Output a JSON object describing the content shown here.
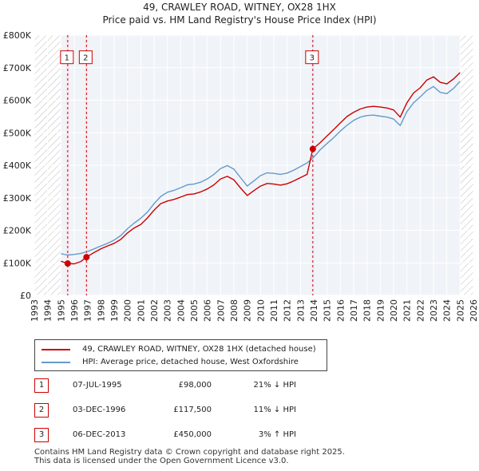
{
  "chart_data": {
    "type": "line",
    "title": "49, CRAWLEY ROAD, WITNEY, OX28 1HX",
    "subtitle": "Price paid vs. HM Land Registry's House Price Index (HPI)",
    "xlim": [
      1993,
      2026
    ],
    "ylim": [
      0,
      800000
    ],
    "x_ticks": [
      1993,
      1994,
      1995,
      1996,
      1997,
      1998,
      1999,
      2000,
      2001,
      2002,
      2003,
      2004,
      2005,
      2006,
      2007,
      2008,
      2009,
      2010,
      2011,
      2012,
      2013,
      2014,
      2015,
      2016,
      2017,
      2018,
      2019,
      2020,
      2021,
      2022,
      2023,
      2024,
      2025,
      2026
    ],
    "x_tick_labels": [
      "1993",
      "1994",
      "1995",
      "1996",
      "1997",
      "1998",
      "1999",
      "2000",
      "2001",
      "2002",
      "2003",
      "2004",
      "2005",
      "2006",
      "2007",
      "2008",
      "2009",
      "2010",
      "2011",
      "2012",
      "2013",
      "2014",
      "2015",
      "2016",
      "2017",
      "2018",
      "2019",
      "2020",
      "2021",
      "2022",
      "2023",
      "2024",
      "2025",
      "2026"
    ],
    "y_ticks": [
      0,
      100000,
      200000,
      300000,
      400000,
      500000,
      600000,
      700000,
      800000
    ],
    "y_tick_labels": [
      "£0",
      "£100K",
      "£200K",
      "£300K",
      "£400K",
      "£500K",
      "£600K",
      "£700K",
      "£800K"
    ],
    "grid": true,
    "hatched_ranges": [
      [
        1993,
        1995.0
      ],
      [
        2025.0,
        2026
      ]
    ],
    "series": [
      {
        "name": "49, CRAWLEY ROAD, WITNEY, OX28 1HX (detached house)",
        "color": "#cc0000",
        "points": [
          [
            1995.0,
            105000
          ],
          [
            1995.51,
            98000
          ],
          [
            1996.0,
            97000
          ],
          [
            1996.5,
            104000
          ],
          [
            1996.92,
            117500
          ],
          [
            1997.5,
            132000
          ],
          [
            1998.0,
            143000
          ],
          [
            1998.5,
            152000
          ],
          [
            1999.0,
            160000
          ],
          [
            1999.5,
            172000
          ],
          [
            2000.0,
            192000
          ],
          [
            2000.5,
            207000
          ],
          [
            2001.0,
            218000
          ],
          [
            2001.5,
            238000
          ],
          [
            2002.0,
            262000
          ],
          [
            2002.5,
            282000
          ],
          [
            2003.0,
            290000
          ],
          [
            2003.5,
            295000
          ],
          [
            2004.0,
            302000
          ],
          [
            2004.5,
            310000
          ],
          [
            2005.0,
            312000
          ],
          [
            2005.5,
            318000
          ],
          [
            2006.0,
            327000
          ],
          [
            2006.5,
            340000
          ],
          [
            2007.0,
            358000
          ],
          [
            2007.5,
            366000
          ],
          [
            2008.0,
            355000
          ],
          [
            2008.5,
            330000
          ],
          [
            2009.0,
            307000
          ],
          [
            2009.5,
            322000
          ],
          [
            2010.0,
            336000
          ],
          [
            2010.5,
            344000
          ],
          [
            2011.0,
            342000
          ],
          [
            2011.5,
            339000
          ],
          [
            2012.0,
            343000
          ],
          [
            2012.5,
            352000
          ],
          [
            2013.0,
            362000
          ],
          [
            2013.5,
            372000
          ],
          [
            2013.93,
            450000
          ],
          [
            2014.5,
            470000
          ],
          [
            2015.0,
            490000
          ],
          [
            2015.5,
            510000
          ],
          [
            2016.0,
            530000
          ],
          [
            2016.5,
            550000
          ],
          [
            2017.0,
            563000
          ],
          [
            2017.5,
            573000
          ],
          [
            2018.0,
            579000
          ],
          [
            2018.5,
            581000
          ],
          [
            2019.0,
            579000
          ],
          [
            2019.5,
            576000
          ],
          [
            2020.0,
            570000
          ],
          [
            2020.5,
            548000
          ],
          [
            2021.0,
            592000
          ],
          [
            2021.5,
            622000
          ],
          [
            2022.0,
            638000
          ],
          [
            2022.5,
            662000
          ],
          [
            2023.0,
            672000
          ],
          [
            2023.5,
            655000
          ],
          [
            2024.0,
            650000
          ],
          [
            2024.5,
            665000
          ],
          [
            2025.0,
            685000
          ]
        ]
      },
      {
        "name": "HPI: Average price, detached house, West Oxfordshire",
        "color": "#6699cc",
        "points": [
          [
            1995.0,
            128000
          ],
          [
            1995.5,
            124000
          ],
          [
            1996.0,
            126000
          ],
          [
            1996.5,
            129000
          ],
          [
            1997.0,
            135000
          ],
          [
            1997.5,
            143000
          ],
          [
            1998.0,
            152000
          ],
          [
            1998.5,
            160000
          ],
          [
            1999.0,
            170000
          ],
          [
            1999.5,
            184000
          ],
          [
            2000.0,
            205000
          ],
          [
            2000.5,
            222000
          ],
          [
            2001.0,
            237000
          ],
          [
            2001.5,
            256000
          ],
          [
            2002.0,
            282000
          ],
          [
            2002.5,
            304000
          ],
          [
            2003.0,
            317000
          ],
          [
            2003.5,
            323000
          ],
          [
            2004.0,
            331000
          ],
          [
            2004.5,
            340000
          ],
          [
            2005.0,
            342000
          ],
          [
            2005.5,
            348000
          ],
          [
            2006.0,
            358000
          ],
          [
            2006.5,
            372000
          ],
          [
            2007.0,
            390000
          ],
          [
            2007.5,
            399000
          ],
          [
            2008.0,
            388000
          ],
          [
            2008.5,
            362000
          ],
          [
            2009.0,
            336000
          ],
          [
            2009.5,
            352000
          ],
          [
            2010.0,
            368000
          ],
          [
            2010.5,
            377000
          ],
          [
            2011.0,
            375000
          ],
          [
            2011.5,
            372000
          ],
          [
            2012.0,
            376000
          ],
          [
            2012.5,
            385000
          ],
          [
            2013.0,
            396000
          ],
          [
            2013.5,
            407000
          ],
          [
            2014.0,
            425000
          ],
          [
            2014.5,
            448000
          ],
          [
            2015.0,
            467000
          ],
          [
            2015.5,
            485000
          ],
          [
            2016.0,
            505000
          ],
          [
            2016.5,
            523000
          ],
          [
            2017.0,
            538000
          ],
          [
            2017.5,
            548000
          ],
          [
            2018.0,
            553000
          ],
          [
            2018.5,
            554000
          ],
          [
            2019.0,
            551000
          ],
          [
            2019.5,
            548000
          ],
          [
            2020.0,
            542000
          ],
          [
            2020.5,
            522000
          ],
          [
            2021.0,
            565000
          ],
          [
            2021.5,
            592000
          ],
          [
            2022.0,
            610000
          ],
          [
            2022.5,
            630000
          ],
          [
            2023.0,
            642000
          ],
          [
            2023.5,
            624000
          ],
          [
            2024.0,
            620000
          ],
          [
            2024.5,
            636000
          ],
          [
            2025.0,
            658000
          ]
        ]
      }
    ],
    "sales": [
      {
        "label": "1",
        "x": 1995.51,
        "price": 98000,
        "date": "07-JUL-1995",
        "price_text": "£98,000",
        "hpi_text": "21% ↓ HPI"
      },
      {
        "label": "2",
        "x": 1996.92,
        "price": 117500,
        "date": "03-DEC-1996",
        "price_text": "£117,500",
        "hpi_text": "11% ↓ HPI"
      },
      {
        "label": "3",
        "x": 2013.93,
        "price": 450000,
        "date": "06-DEC-2013",
        "price_text": "£450,000",
        "hpi_text": "3% ↑ HPI"
      }
    ]
  },
  "legend": {
    "property_label": "49, CRAWLEY ROAD, WITNEY, OX28 1HX (detached house)",
    "hpi_label": "HPI: Average price, detached house, West Oxfordshire"
  },
  "footer": {
    "line1": "Contains HM Land Registry data © Crown copyright and database right 2025.",
    "line2": "This data is licensed under the Open Government Licence v3.0."
  }
}
